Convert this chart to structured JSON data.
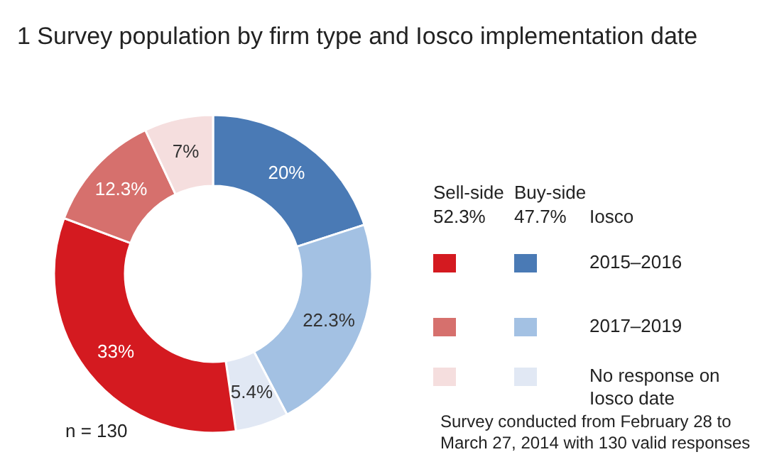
{
  "chart_data": {
    "type": "donut",
    "title": "1 Survey population by firm type and Iosco implementation date",
    "categories": [
      null,
      null,
      null,
      null,
      null,
      null
    ],
    "values": [
      20,
      22.3,
      5.4,
      33,
      12.3,
      7
    ],
    "value_labels": [
      "20%",
      "22.3%",
      "5.4%",
      "33%",
      "12.3%",
      "7%"
    ],
    "colors": [
      "#4a7ab5",
      "#a3c1e3",
      "#e1e8f4",
      "#d41a20",
      "#d6706d",
      "#f5dede"
    ],
    "annotations": [
      "Sell-side",
      "52.3%",
      "Buy-side",
      "47.7%",
      "Iosco",
      "2015–2016",
      "2017–2019",
      "No response on Iosco date",
      "n = 130",
      "Survey conducted from February 28 to March 27, 2014 with 130 valid responses"
    ]
  }
}
